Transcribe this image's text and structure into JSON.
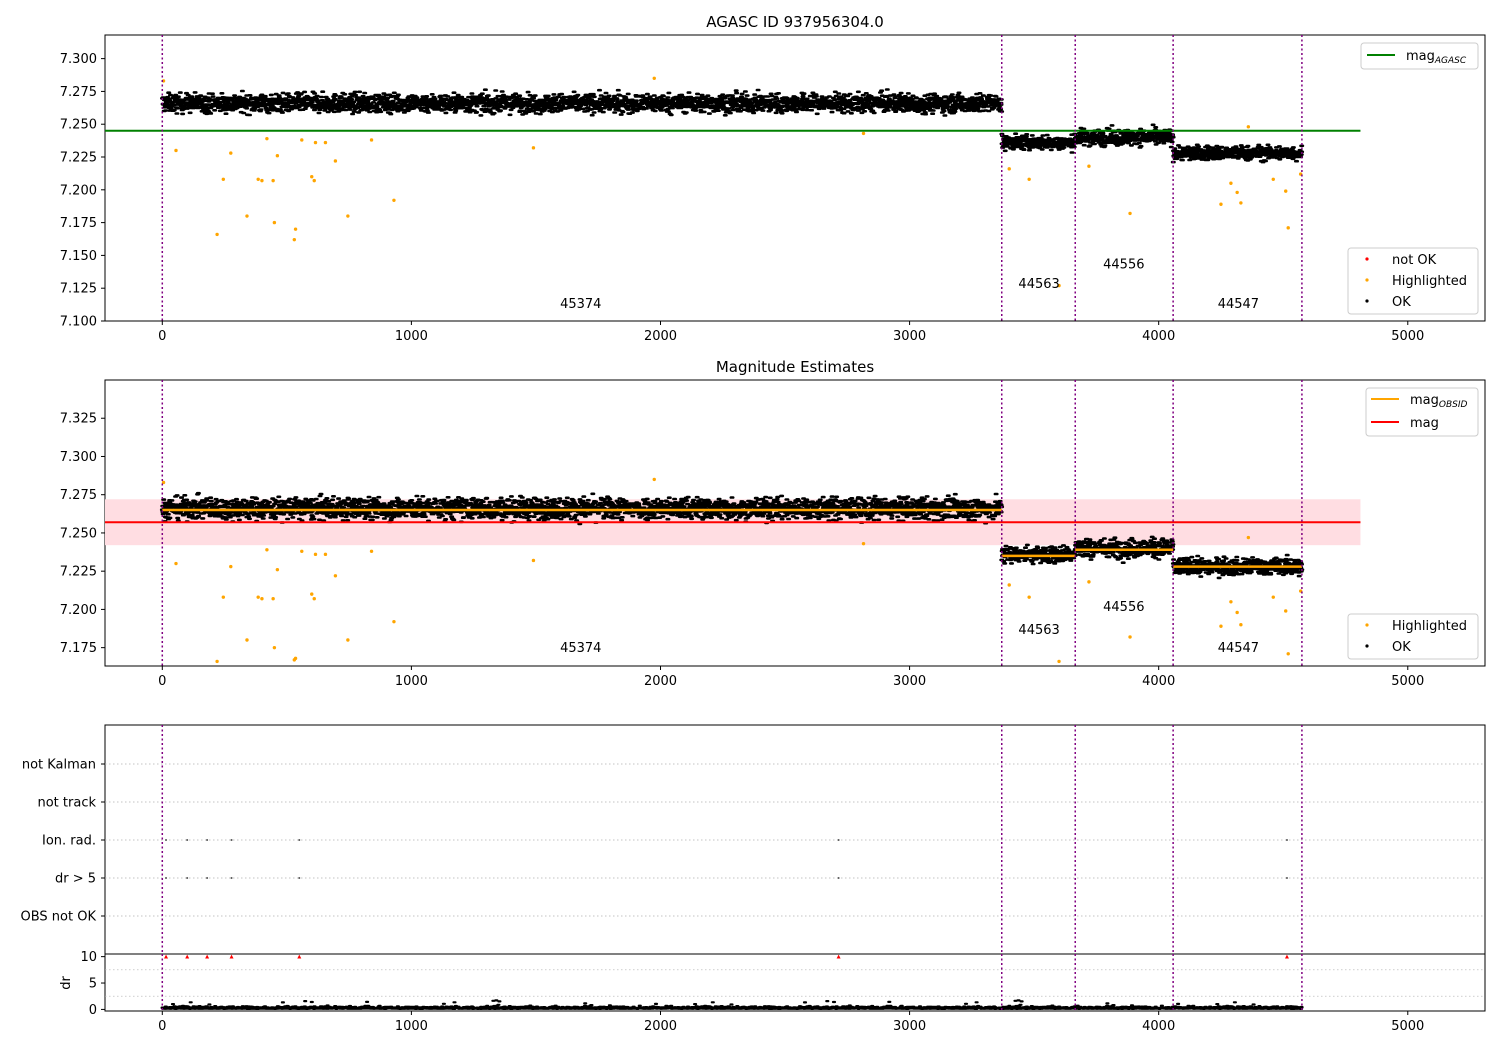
{
  "chart_data": [
    {
      "type": "scatter",
      "title": "AGASC ID 937956304.0",
      "xlim": [
        -230,
        5310
      ],
      "ylim": [
        7.1,
        7.318
      ],
      "xticks": [
        0,
        1000,
        2000,
        3000,
        4000,
        5000
      ],
      "yticks": [
        7.1,
        7.125,
        7.15,
        7.175,
        7.2,
        7.225,
        7.25,
        7.275,
        7.3
      ],
      "obsid_boundaries": [
        0,
        3370,
        3665,
        4058,
        4575
      ],
      "obsid_labels": [
        {
          "text": "45374",
          "x": 1680,
          "y": 7.11
        },
        {
          "text": "44563",
          "x": 3520,
          "y": 7.125
        },
        {
          "text": "44556",
          "x": 3860,
          "y": 7.14
        },
        {
          "text": "44547",
          "x": 4320,
          "y": 7.11
        }
      ],
      "lines": [
        {
          "name": "mag",
          "subscript": "AGASC",
          "y": 7.245,
          "x0": -230,
          "x1": 4810,
          "color": "#008000"
        }
      ],
      "segments": [
        {
          "x0": 0,
          "x1": 3370,
          "center": 7.266,
          "spread": 0.009
        },
        {
          "x0": 3370,
          "x1": 3665,
          "center": 7.236,
          "spread": 0.007
        },
        {
          "x0": 3665,
          "x1": 4058,
          "center": 7.24,
          "spread": 0.008
        },
        {
          "x0": 4058,
          "x1": 4575,
          "center": 7.228,
          "spread": 0.007
        }
      ],
      "highlighted": [
        [
          5,
          7.283
        ],
        [
          55,
          7.23
        ],
        [
          220,
          7.166
        ],
        [
          245,
          7.208
        ],
        [
          275,
          7.228
        ],
        [
          340,
          7.18
        ],
        [
          385,
          7.208
        ],
        [
          400,
          7.207
        ],
        [
          420,
          7.239
        ],
        [
          445,
          7.207
        ],
        [
          450,
          7.175
        ],
        [
          462,
          7.226
        ],
        [
          530,
          7.162
        ],
        [
          535,
          7.17
        ],
        [
          560,
          7.238
        ],
        [
          600,
          7.21
        ],
        [
          610,
          7.207
        ],
        [
          615,
          7.236
        ],
        [
          655,
          7.236
        ],
        [
          695,
          7.222
        ],
        [
          745,
          7.18
        ],
        [
          840,
          7.238
        ],
        [
          930,
          7.192
        ],
        [
          1490,
          7.232
        ],
        [
          1975,
          7.285
        ],
        [
          2815,
          7.243
        ],
        [
          3400,
          7.216
        ],
        [
          3480,
          7.208
        ],
        [
          3600,
          7.127
        ],
        [
          3720,
          7.218
        ],
        [
          3885,
          7.182
        ],
        [
          4250,
          7.189
        ],
        [
          4290,
          7.205
        ],
        [
          4315,
          7.198
        ],
        [
          4330,
          7.19
        ],
        [
          4360,
          7.248
        ],
        [
          4460,
          7.208
        ],
        [
          4510,
          7.199
        ],
        [
          4520,
          7.171
        ],
        [
          4570,
          7.212
        ]
      ],
      "legend": {
        "position": "upper-right",
        "entries": [
          "mag_AGASC"
        ]
      },
      "legend2": {
        "position": "lower-right",
        "entries": [
          "not OK",
          "Highlighted",
          "OK"
        ]
      }
    },
    {
      "type": "scatter",
      "title": "Magnitude Estimates",
      "xlim": [
        -230,
        5310
      ],
      "ylim": [
        7.163,
        7.35
      ],
      "xticks": [
        0,
        1000,
        2000,
        3000,
        4000,
        5000
      ],
      "yticks": [
        7.175,
        7.2,
        7.225,
        7.25,
        7.275,
        7.3,
        7.325
      ],
      "obsid_boundaries": [
        0,
        3370,
        3665,
        4058,
        4575
      ],
      "obsid_labels": [
        {
          "text": "45374",
          "x": 1680,
          "y": 7.172
        },
        {
          "text": "44563",
          "x": 3520,
          "y": 7.184
        },
        {
          "text": "44556",
          "x": 3860,
          "y": 7.199
        },
        {
          "text": "44547",
          "x": 4320,
          "y": 7.172
        }
      ],
      "mag": {
        "y": 7.257,
        "band": [
          7.242,
          7.272
        ],
        "x0": -230,
        "x1": 4810,
        "color": "#ff0000",
        "band_color": "#ffdde2"
      },
      "mag_obsid": [
        {
          "x0": 0,
          "x1": 3370,
          "y": 7.265
        },
        {
          "x0": 3370,
          "x1": 3665,
          "y": 7.235
        },
        {
          "x0": 3665,
          "x1": 4058,
          "y": 7.239
        },
        {
          "x0": 4058,
          "x1": 4575,
          "y": 7.228
        }
      ],
      "segments": [
        {
          "x0": 0,
          "x1": 3370,
          "center": 7.266,
          "spread": 0.009
        },
        {
          "x0": 3370,
          "x1": 3665,
          "center": 7.236,
          "spread": 0.007
        },
        {
          "x0": 3665,
          "x1": 4058,
          "center": 7.24,
          "spread": 0.008
        },
        {
          "x0": 4058,
          "x1": 4575,
          "center": 7.228,
          "spread": 0.007
        }
      ],
      "highlighted": [
        [
          5,
          7.283
        ],
        [
          55,
          7.23
        ],
        [
          220,
          7.166
        ],
        [
          245,
          7.208
        ],
        [
          275,
          7.228
        ],
        [
          340,
          7.18
        ],
        [
          385,
          7.208
        ],
        [
          400,
          7.207
        ],
        [
          420,
          7.239
        ],
        [
          445,
          7.207
        ],
        [
          450,
          7.175
        ],
        [
          462,
          7.226
        ],
        [
          530,
          7.167
        ],
        [
          535,
          7.168
        ],
        [
          560,
          7.238
        ],
        [
          600,
          7.21
        ],
        [
          610,
          7.207
        ],
        [
          615,
          7.236
        ],
        [
          655,
          7.236
        ],
        [
          695,
          7.222
        ],
        [
          745,
          7.18
        ],
        [
          840,
          7.238
        ],
        [
          930,
          7.192
        ],
        [
          1490,
          7.232
        ],
        [
          1975,
          7.285
        ],
        [
          2815,
          7.243
        ],
        [
          3400,
          7.216
        ],
        [
          3480,
          7.208
        ],
        [
          3600,
          7.166
        ],
        [
          3720,
          7.218
        ],
        [
          3885,
          7.182
        ],
        [
          4250,
          7.189
        ],
        [
          4290,
          7.205
        ],
        [
          4315,
          7.198
        ],
        [
          4330,
          7.19
        ],
        [
          4360,
          7.247
        ],
        [
          4460,
          7.208
        ],
        [
          4510,
          7.199
        ],
        [
          4520,
          7.171
        ],
        [
          4570,
          7.212
        ]
      ],
      "legend": {
        "position": "upper-right",
        "entries": [
          "mag_OBSID",
          "mag"
        ]
      },
      "legend2": {
        "position": "lower-right",
        "entries": [
          "Highlighted",
          "OK"
        ]
      }
    },
    {
      "type": "scatter",
      "xlim": [
        -230,
        5310
      ],
      "xticks": [
        0,
        1000,
        2000,
        3000,
        4000,
        5000
      ],
      "flag_rows": [
        "not Kalman",
        "not track",
        "Ion. rad.",
        "dr > 5",
        "OBS not OK"
      ],
      "flag_points": {
        "Ion. rad.": [
          15,
          100,
          180,
          278,
          550,
          2715,
          4515
        ],
        "dr > 5": [
          15,
          100,
          180,
          278,
          550,
          2715,
          4515
        ]
      },
      "obsid_boundaries": [
        0,
        3370,
        3665,
        4058,
        4575
      ]
    },
    {
      "type": "scatter",
      "ylabel": "dr",
      "xlim": [
        -230,
        5310
      ],
      "ylim": [
        -0.3,
        10.5
      ],
      "xticks": [
        0,
        1000,
        2000,
        3000,
        4000,
        5000
      ],
      "yticks": [
        0,
        5,
        10
      ],
      "dr_range": [
        0,
        4575
      ],
      "dr_typical": 0.3,
      "dr_outliers": [
        [
          15,
          10
        ],
        [
          100,
          10
        ],
        [
          180,
          10
        ],
        [
          278,
          10
        ],
        [
          550,
          10
        ],
        [
          2715,
          10
        ],
        [
          4515,
          10
        ]
      ],
      "obsid_boundaries": [
        0,
        3370,
        3665,
        4058,
        4575
      ]
    }
  ],
  "legend_labels": {
    "mag_agasc": "mag",
    "mag_agasc_sub": "AGASC",
    "mag_obsid": "mag",
    "mag_obsid_sub": "OBSID",
    "mag": "mag",
    "not_ok": "not OK",
    "highlighted": "Highlighted",
    "ok": "OK"
  },
  "colors": {
    "ok": "#000000",
    "highlighted": "#ffa500",
    "not_ok": "#ff0000",
    "obsid_line": "#800080",
    "agasc_line": "#008000",
    "mag_obsid_line": "#ffa500",
    "grid": "#b0b0b0"
  }
}
